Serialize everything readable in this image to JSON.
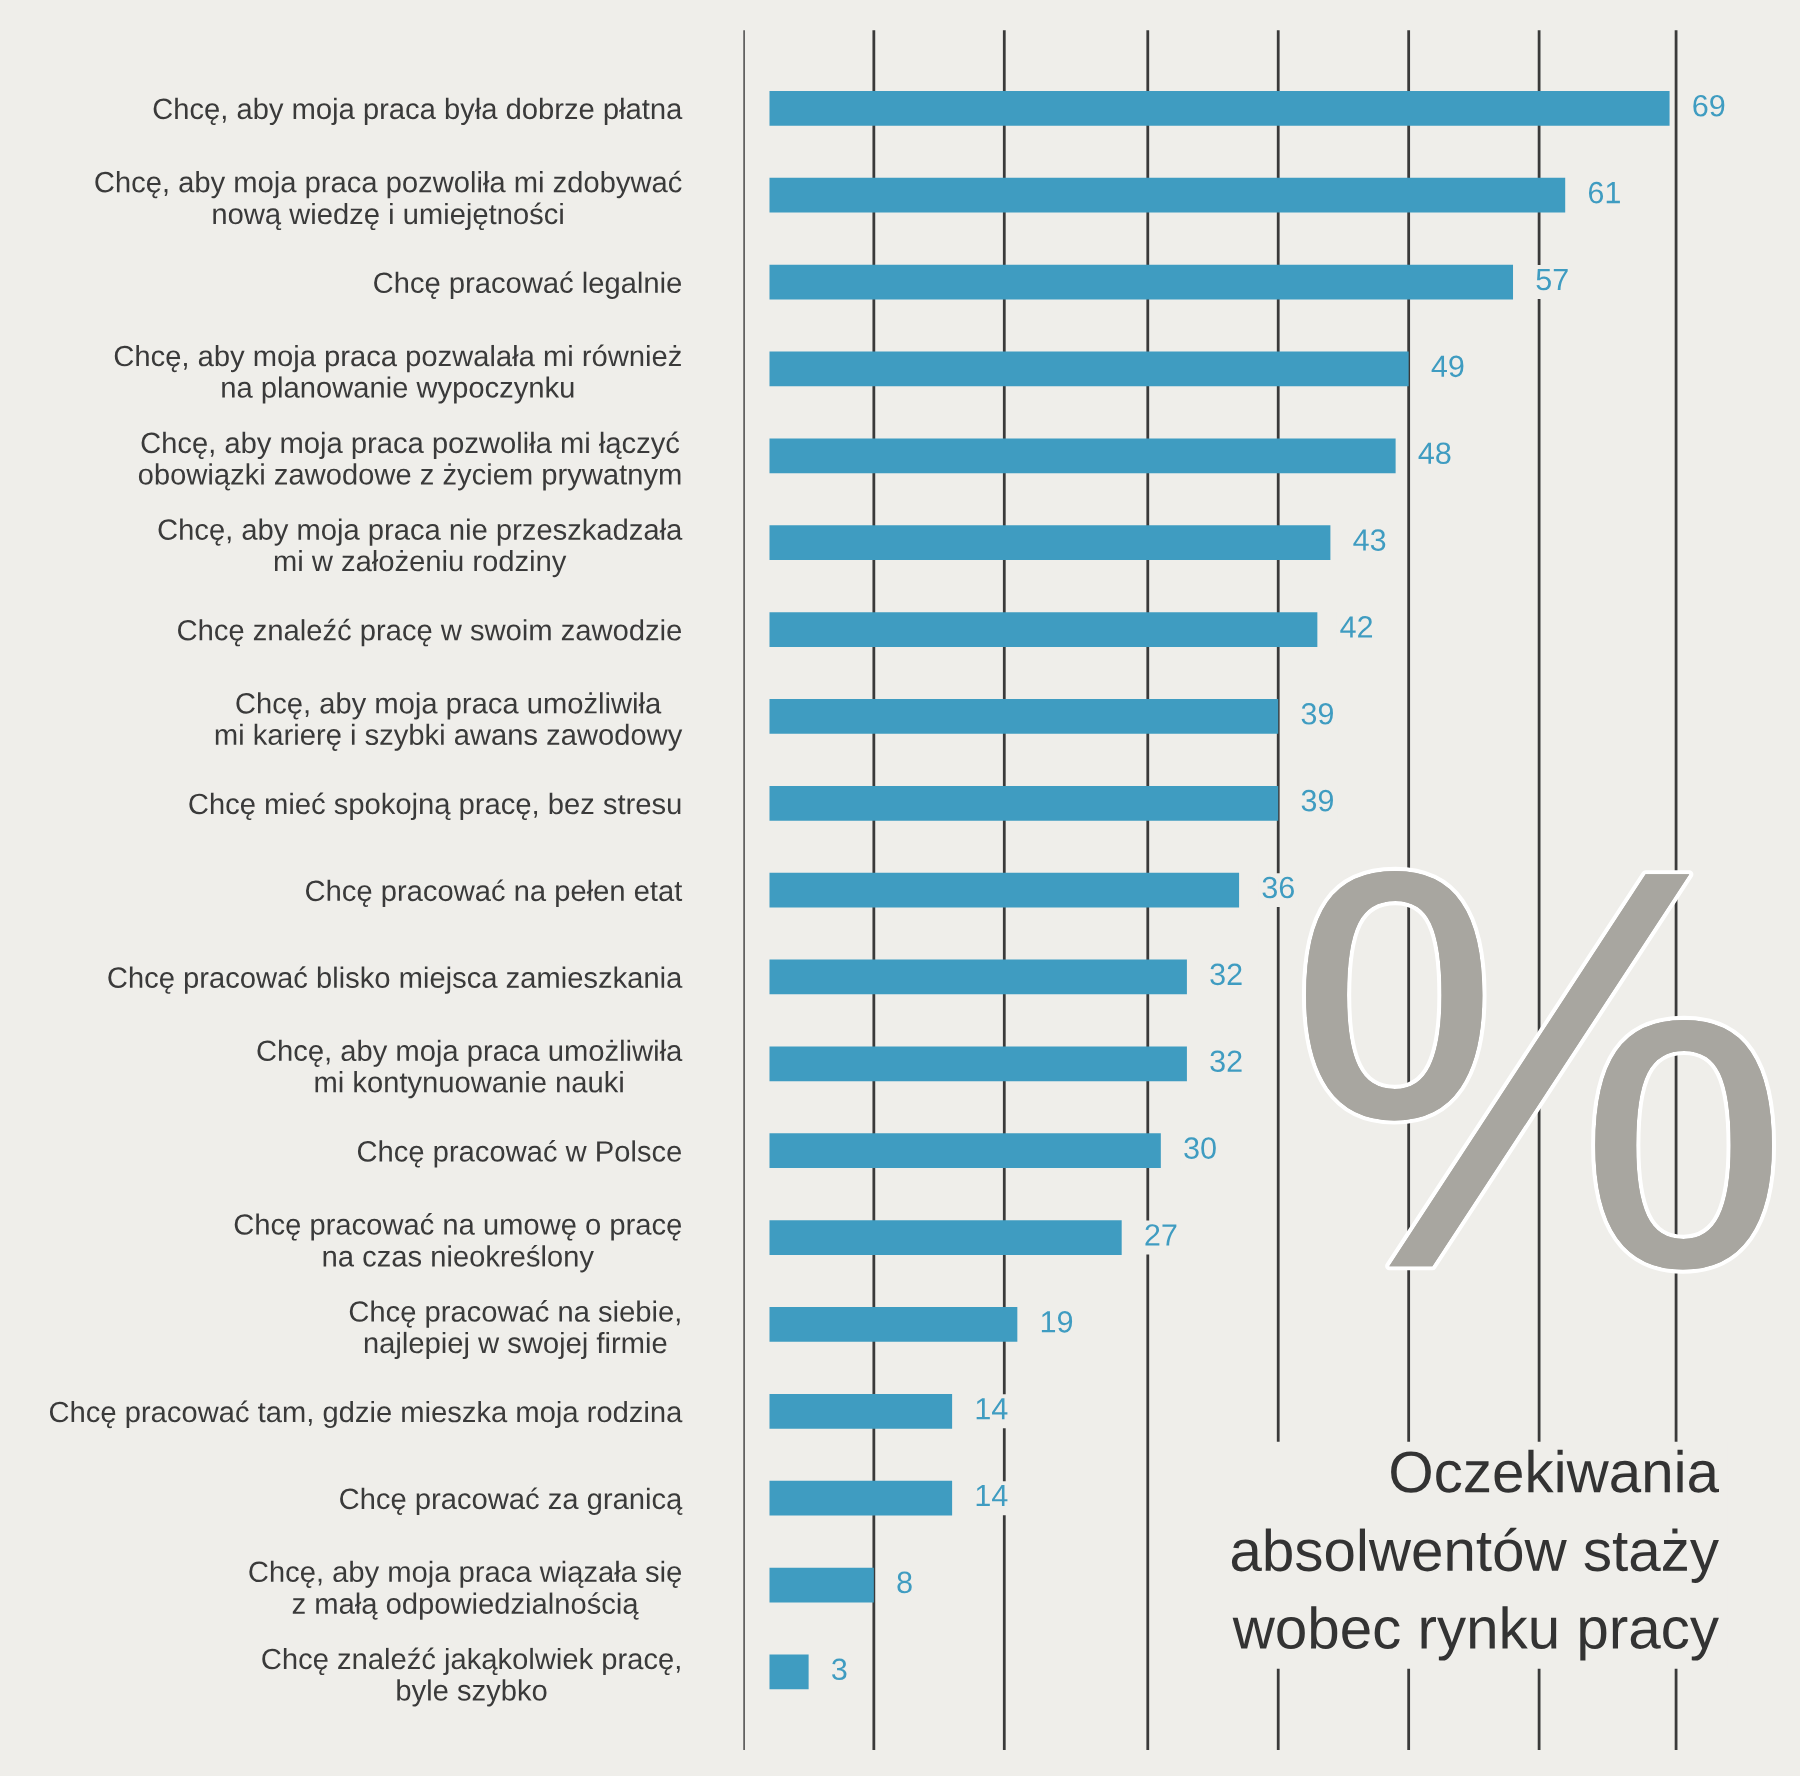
{
  "chart_data": {
    "type": "bar",
    "orientation": "horizontal",
    "title": "Oczekiwania\nabsolwentów staży\nwobec rynku pracy",
    "categories": [
      "Chcę, aby moja praca była dobrze płatna",
      "Chcę, aby moja praca pozwoliła mi zdobywać\nnową wiedzę i umiejętności",
      "Chcę pracować legalnie",
      "Chcę, aby moja praca pozwalała mi również\nna planowanie wypoczynku",
      "Chcę, aby moja praca pozwoliła mi łączyć\nobowiązki zawodowe z życiem prywatnym",
      "Chcę, aby moja praca nie przeszkadzała\nmi w założeniu rodziny",
      "Chcę znaleźć pracę w swoim zawodzie",
      "Chcę, aby moja praca umożliwiła\nmi karierę i szybki awans zawodowy",
      "Chcę mieć spokojną pracę, bez stresu",
      "Chcę pracować na pełen etat",
      "Chcę pracować blisko miejsca zamieszkania",
      "Chcę, aby moja praca umożliwiła\nmi kontynuowanie nauki",
      "Chcę pracować w Polsce",
      "Chcę pracować na umowę o pracę\nna czas nieokreślony",
      "Chcę pracować na siebie,\nnajlepiej w swojej firmie",
      "Chcę pracować tam, gdzie mieszka moja rodzina",
      "Chcę pracować za granicą",
      "Chcę, aby moja praca wiązała się\nz małą odpowiedzialnością",
      "Chcę znaleźć jakąkolwiek pracę,\nbyle szybko"
    ],
    "values": [
      69,
      61,
      57,
      49,
      48,
      43,
      42,
      39,
      39,
      36,
      32,
      32,
      30,
      27,
      19,
      14,
      14,
      8,
      3
    ],
    "color": "#3f9cc1",
    "data_labels": true,
    "xlim": [
      -2,
      79
    ],
    "xticks": [
      {
        "value": -2,
        "label": null
      },
      {
        "value": 8,
        "label": null
      },
      {
        "value": 18,
        "label": null
      },
      {
        "value": 29,
        "label": null
      },
      {
        "value": 39,
        "label": null
      },
      {
        "value": 49,
        "label": null
      },
      {
        "value": 59,
        "label": null
      },
      {
        "value": 69.5,
        "label": null
      }
    ],
    "grid": "x",
    "tick_labels": "y",
    "annotations": [
      "%"
    ]
  }
}
